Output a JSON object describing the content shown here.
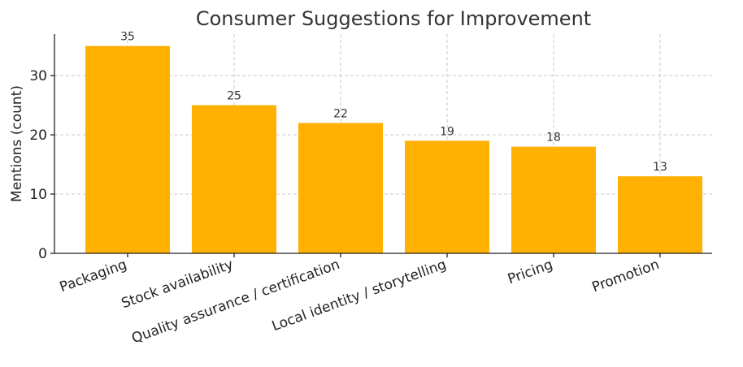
{
  "chart_data": {
    "type": "bar",
    "title": "Consumer Suggestions for Improvement",
    "xlabel": "",
    "ylabel": "Mentions (count)",
    "categories": [
      "Packaging",
      "Stock availability",
      "Quality assurance / certification",
      "Local identity / storytelling",
      "Pricing",
      "Promotion"
    ],
    "values": [
      35,
      25,
      22,
      19,
      18,
      13
    ],
    "ylim": [
      0,
      37
    ],
    "yticks": [
      0,
      10,
      20,
      30
    ],
    "bar_color": "#FFB000",
    "grid": true,
    "legend": null
  }
}
